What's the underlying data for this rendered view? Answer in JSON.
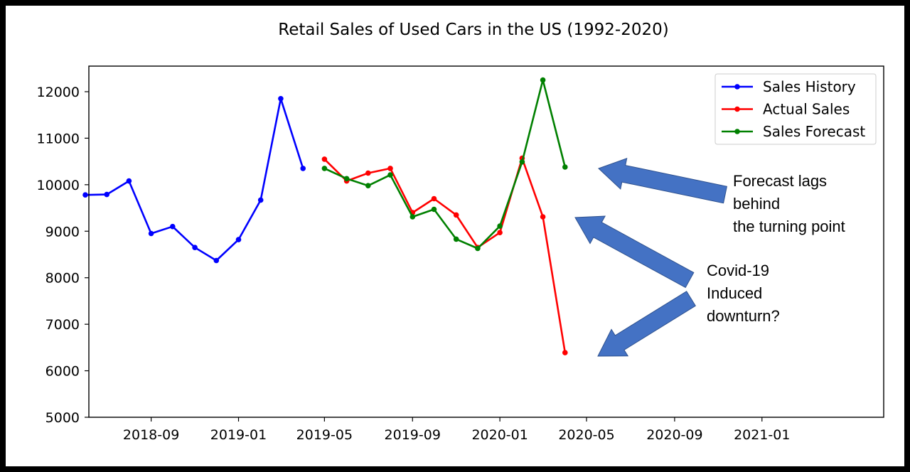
{
  "chart_data": {
    "type": "line",
    "title": "Retail Sales of Used Cars in the US (1992-2020)",
    "xlabel": "",
    "ylabel": "",
    "xlim": [
      "2018-06-06",
      "2021-06-20"
    ],
    "ylim": [
      5000,
      12550
    ],
    "x_ticks": [
      "2018-09",
      "2019-01",
      "2019-05",
      "2019-09",
      "2020-01",
      "2020-05",
      "2020-09",
      "2021-01"
    ],
    "y_ticks": [
      5000,
      6000,
      7000,
      8000,
      9000,
      10000,
      11000,
      12000
    ],
    "legend_position": "top-right",
    "series": [
      {
        "name": "Sales History",
        "color": "#0000ff",
        "x": [
          "2018-06-01",
          "2018-07-01",
          "2018-08-01",
          "2018-09-01",
          "2018-10-01",
          "2018-11-01",
          "2018-12-01",
          "2019-01-01",
          "2019-02-01",
          "2019-03-01",
          "2019-04-01"
        ],
        "values": [
          9780,
          9790,
          10080,
          8950,
          9100,
          8650,
          8370,
          8820,
          9670,
          11850,
          10350
        ]
      },
      {
        "name": "Actual Sales",
        "color": "#ff0000",
        "x": [
          "2019-05-01",
          "2019-06-01",
          "2019-07-01",
          "2019-08-01",
          "2019-09-01",
          "2019-10-01",
          "2019-11-01",
          "2019-12-01",
          "2020-01-01",
          "2020-02-01",
          "2020-03-01",
          "2020-04-01"
        ],
        "values": [
          10550,
          10080,
          10250,
          10350,
          9400,
          9700,
          9350,
          8650,
          8970,
          10570,
          9310,
          6390
        ]
      },
      {
        "name": "Sales Forecast",
        "color": "#008000",
        "x": [
          "2019-05-01",
          "2019-06-01",
          "2019-07-01",
          "2019-08-01",
          "2019-09-01",
          "2019-10-01",
          "2019-11-01",
          "2019-12-01",
          "2020-01-01",
          "2020-02-01",
          "2020-03-01",
          "2020-04-01"
        ],
        "values": [
          10350,
          10130,
          9980,
          10210,
          9310,
          9470,
          8830,
          8630,
          9110,
          10490,
          12250,
          10380
        ]
      }
    ],
    "annotations": [
      {
        "id": "forecast-lag",
        "lines": [
          "Forecast lags",
          "behind",
          "the turning point"
        ]
      },
      {
        "id": "covid",
        "lines": [
          "Covid-19",
          "Induced",
          "downturn?"
        ]
      }
    ],
    "annotation_arrow_color": "#4472c4"
  }
}
